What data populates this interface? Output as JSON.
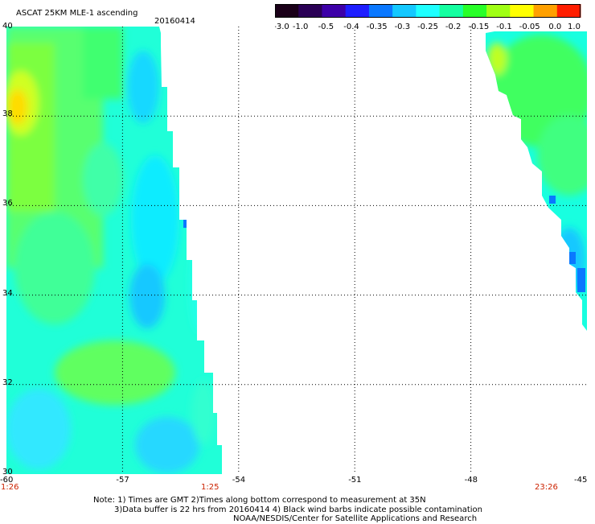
{
  "header": {
    "title": "ASCAT 25KM MLE-1 ascending",
    "date": "20160414"
  },
  "colorbar": {
    "labels": [
      "-3.0",
      "-1.0",
      "-0.5",
      "-0.4",
      "-0.35",
      "-0.3",
      "-0.25",
      "-0.2",
      "-0.15",
      "-0.1",
      "-0.05",
      "0.0",
      "1.0"
    ],
    "colors": [
      "#1a0018",
      "#2a0055",
      "#3d00a8",
      "#1e1eff",
      "#0a78ff",
      "#14c8ff",
      "#1effff",
      "#14ffa0",
      "#28ff28",
      "#a0ff14",
      "#ffff00",
      "#ffa000",
      "#ff1e00"
    ]
  },
  "map": {
    "lon_labels": [
      "-60",
      "-57",
      "-54",
      "-51",
      "-48",
      "-45"
    ],
    "lat_labels": [
      "40",
      "38",
      "36",
      "34",
      "32",
      "30"
    ],
    "time_labels": [
      "1:26",
      "1:25",
      "23:26"
    ],
    "lon_range": [
      -60,
      -45
    ],
    "lat_range": [
      30,
      40
    ]
  },
  "notes": {
    "line1": "Note: 1) Times are GMT 2)Times along bottom correspond to measurement at 35N",
    "line2": "3)Data buffer is 22 hrs from 20160414 4) Black wind barbs indicate possible contamination",
    "line3": "NOAA/NESDIS/Center for Satellite Applications and Research"
  }
}
